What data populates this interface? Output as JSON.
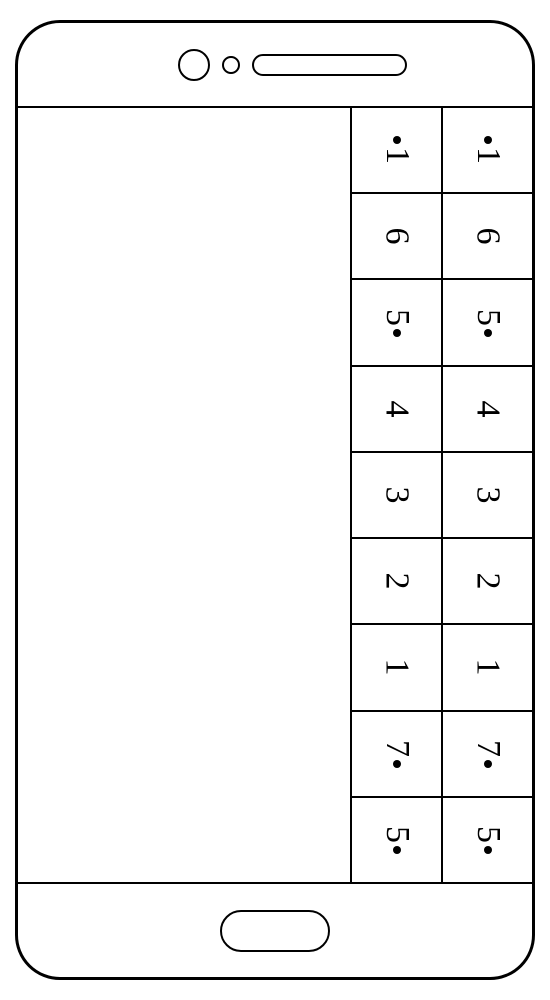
{
  "phone": {
    "body_border_radius": 45,
    "body_border_color": "#000000",
    "background_color": "#ffffff"
  },
  "grid": {
    "columns": 2,
    "rows": 9,
    "cell_border_color": "#000000",
    "font_size": 34,
    "rotation_deg": 90,
    "data": [
      {
        "number": "1",
        "dot_position": "before"
      },
      {
        "number": "6",
        "dot_position": "none"
      },
      {
        "number": "5",
        "dot_position": "after"
      },
      {
        "number": "4",
        "dot_position": "none"
      },
      {
        "number": "3",
        "dot_position": "none"
      },
      {
        "number": "2",
        "dot_position": "none"
      },
      {
        "number": "1",
        "dot_position": "none"
      },
      {
        "number": "7",
        "dot_position": "after"
      },
      {
        "number": "5",
        "dot_position": "after"
      }
    ]
  }
}
